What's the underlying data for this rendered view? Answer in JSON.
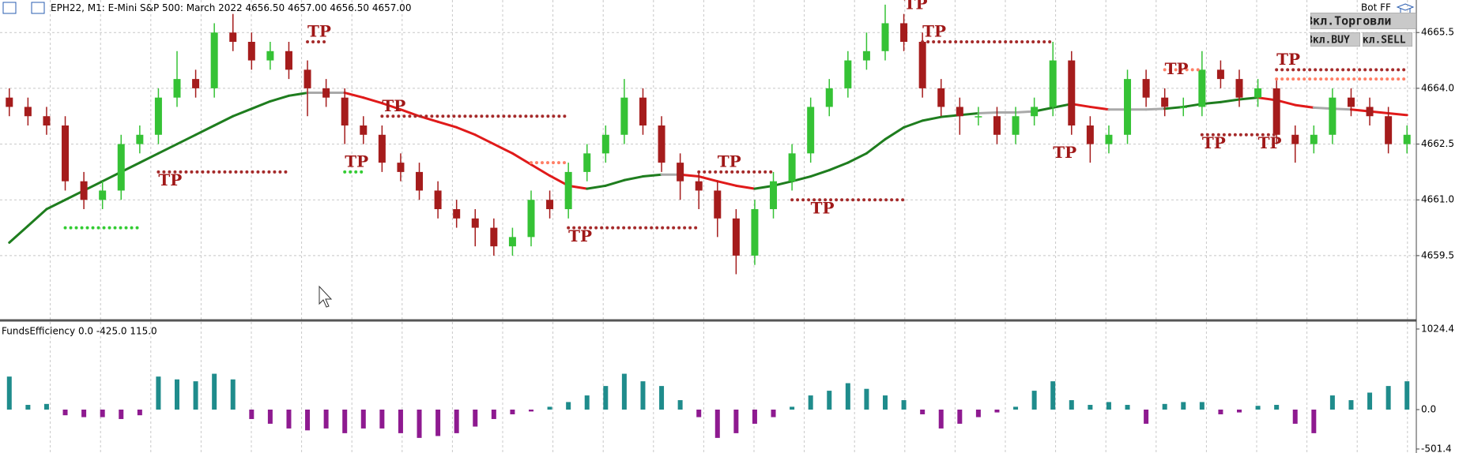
{
  "header": {
    "symbol": "EPH22, M1:",
    "description": "E-Mini S&P 500: March 2022",
    "ohlc": "4656.50 4657.00 4656.50 4657.00",
    "bot": "Bot FF",
    "buttons": [
      "Вкл.Торговли",
      "Вкл.BUY",
      "Вкл.SELL"
    ]
  },
  "chart_data": [
    {
      "type": "candlestick",
      "open": [
        4663.75,
        4663.5,
        4663.25,
        4663.0,
        4661.5,
        4661.0,
        4661.25,
        4662.5,
        4662.75,
        4663.75,
        4664.25,
        4664.0,
        4665.5,
        4665.25,
        4664.75,
        4665.0,
        4664.5,
        4664.0,
        4663.75,
        4663.0,
        4662.75,
        4662.0,
        4661.75,
        4661.25,
        4660.75,
        4660.5,
        4660.25,
        4659.75,
        4660.0,
        4661.0,
        4660.75,
        4661.75,
        4662.25,
        4662.75,
        4663.75,
        4663.0,
        4662.0,
        4661.5,
        4661.25,
        4660.5,
        4659.5,
        4660.75,
        4661.5,
        4662.25,
        4663.5,
        4664.0,
        4664.75,
        4665.0,
        4665.75,
        4665.25,
        4664.0,
        4663.5,
        4663.25,
        4663.25,
        4662.75,
        4663.25,
        4663.5,
        4664.75,
        4663.0,
        4662.5,
        4662.75,
        4664.25,
        4663.75,
        4663.5,
        4663.5,
        4664.5,
        4664.25,
        4663.75,
        4664.0,
        4662.75,
        4662.5,
        4662.75,
        4663.75,
        4663.5,
        4663.25,
        4662.5
      ],
      "high": [
        4664.0,
        4663.75,
        4663.5,
        4663.25,
        4661.75,
        4661.5,
        4662.75,
        4663.0,
        4664.0,
        4665.0,
        4664.5,
        4665.75,
        4666.0,
        4665.5,
        4665.25,
        4665.25,
        4664.75,
        4664.25,
        4664.0,
        4663.25,
        4663.0,
        4662.25,
        4662.0,
        4661.5,
        4661.0,
        4660.75,
        4660.5,
        4660.25,
        4661.25,
        4661.25,
        4662.0,
        4662.5,
        4663.0,
        4664.25,
        4664.0,
        4663.25,
        4662.25,
        4661.75,
        4661.5,
        4660.75,
        4661.0,
        4661.75,
        4662.5,
        4663.75,
        4664.25,
        4665.0,
        4665.5,
        4666.25,
        4666.0,
        4665.5,
        4664.25,
        4663.75,
        4663.5,
        4663.5,
        4663.5,
        4663.75,
        4665.25,
        4665.0,
        4663.25,
        4663.0,
        4664.5,
        4664.5,
        4664.0,
        4663.75,
        4665.0,
        4664.75,
        4664.5,
        4664.25,
        4664.25,
        4663.0,
        4663.0,
        4664.0,
        4664.0,
        4663.75,
        4663.5,
        4663.0
      ],
      "low": [
        4663.25,
        4663.0,
        4662.75,
        4661.25,
        4660.75,
        4660.75,
        4661.0,
        4662.25,
        4662.5,
        4663.5,
        4663.75,
        4663.75,
        4665.0,
        4664.5,
        4664.5,
        4664.25,
        4663.25,
        4663.5,
        4662.5,
        4662.5,
        4661.75,
        4661.5,
        4661.0,
        4660.5,
        4660.25,
        4659.75,
        4659.5,
        4659.5,
        4659.75,
        4660.5,
        4660.5,
        4661.5,
        4662.0,
        4662.5,
        4662.75,
        4661.75,
        4661.0,
        4660.75,
        4660.0,
        4659.0,
        4659.25,
        4660.5,
        4661.25,
        4662.0,
        4663.25,
        4663.75,
        4664.5,
        4664.75,
        4665.0,
        4663.75,
        4663.25,
        4662.75,
        4663.0,
        4662.5,
        4662.5,
        4663.0,
        4663.25,
        4662.75,
        4662.0,
        4662.25,
        4662.5,
        4663.5,
        4663.25,
        4663.25,
        4663.25,
        4664.0,
        4663.5,
        4663.5,
        4662.5,
        4662.0,
        4662.25,
        4662.5,
        4663.25,
        4663.0,
        4662.25,
        4662.25
      ],
      "close": [
        4663.5,
        4663.25,
        4663.0,
        4661.5,
        4661.0,
        4661.25,
        4662.5,
        4662.75,
        4663.75,
        4664.25,
        4664.0,
        4665.5,
        4665.25,
        4664.75,
        4665.0,
        4664.5,
        4664.0,
        4663.75,
        4663.0,
        4662.75,
        4662.0,
        4661.75,
        4661.25,
        4660.75,
        4660.5,
        4660.25,
        4659.75,
        4660.0,
        4661.0,
        4660.75,
        4661.75,
        4662.25,
        4662.75,
        4663.75,
        4663.0,
        4662.0,
        4661.5,
        4661.25,
        4660.5,
        4659.5,
        4660.75,
        4661.5,
        4662.25,
        4663.5,
        4664.0,
        4664.75,
        4665.0,
        4665.75,
        4665.25,
        4664.0,
        4663.5,
        4663.25,
        4663.25,
        4662.75,
        4663.25,
        4663.5,
        4664.75,
        4663.0,
        4662.5,
        4662.75,
        4664.25,
        4663.75,
        4663.5,
        4663.5,
        4664.5,
        4664.25,
        4663.75,
        4664.0,
        4662.75,
        4662.5,
        4662.75,
        4663.75,
        4663.5,
        4663.25,
        4662.5,
        4662.75
      ],
      "up_color": "#35c235",
      "down_color": "#a51c1c",
      "ma": {
        "values": [
          4659.85,
          4660.3,
          4660.75,
          4661.0,
          4661.25,
          4661.5,
          4661.75,
          4662.0,
          4662.25,
          4662.5,
          4662.75,
          4663.0,
          4663.25,
          4663.45,
          4663.65,
          4663.8,
          4663.88,
          4663.88,
          4663.88,
          4663.75,
          4663.6,
          4663.43,
          4663.25,
          4663.1,
          4662.95,
          4662.75,
          4662.5,
          4662.25,
          4661.95,
          4661.65,
          4661.38,
          4661.3,
          4661.38,
          4661.53,
          4661.63,
          4661.68,
          4661.68,
          4661.63,
          4661.5,
          4661.38,
          4661.3,
          4661.38,
          4661.5,
          4661.63,
          4661.8,
          4662.0,
          4662.25,
          4662.63,
          4662.95,
          4663.13,
          4663.23,
          4663.28,
          4663.33,
          4663.35,
          4663.35,
          4663.38,
          4663.48,
          4663.58,
          4663.5,
          4663.43,
          4663.43,
          4663.43,
          4663.45,
          4663.5,
          4663.58,
          4663.63,
          4663.7,
          4663.75,
          4663.68,
          4663.55,
          4663.48,
          4663.45,
          4663.43,
          4663.38,
          4663.33,
          4663.28
        ],
        "colors": {
          "up": "#1e7d1e",
          "down": "#e01a1a",
          "flat": "#a9a9a9"
        }
      },
      "levels": [
        {
          "start": 16,
          "end": 17,
          "price": 4665.25,
          "color": "#a52a2a"
        },
        {
          "start": 8,
          "end": 15,
          "price": 4661.75,
          "color": "#a52a2a"
        },
        {
          "start": 20,
          "end": 30,
          "price": 4663.25,
          "color": "#a52a2a"
        },
        {
          "start": 30,
          "end": 37,
          "price": 4660.25,
          "color": "#a52a2a"
        },
        {
          "start": 37,
          "end": 41,
          "price": 4661.75,
          "color": "#a52a2a"
        },
        {
          "start": 42,
          "end": 48,
          "price": 4661.0,
          "color": "#a52a2a"
        },
        {
          "start": 49,
          "end": 56,
          "price": 4665.25,
          "color": "#a52a2a"
        },
        {
          "start": 64,
          "end": 68,
          "price": 4662.75,
          "color": "#a52a2a"
        },
        {
          "start": 68,
          "end": 75,
          "price": 4664.5,
          "color": "#a52a2a"
        },
        {
          "start": 3,
          "end": 7,
          "price": 4660.25,
          "color": "#33cc33"
        },
        {
          "start": 18,
          "end": 19,
          "price": 4661.75,
          "color": "#33cc33"
        },
        {
          "start": 28,
          "end": 30,
          "price": 4662.0,
          "color": "#ff7f66"
        },
        {
          "start": 68,
          "end": 75,
          "price": 4664.25,
          "color": "#ff7f66"
        },
        {
          "start": 62,
          "end": 64,
          "price": 4664.5,
          "color": "#ff7f66"
        }
      ],
      "annotations": [
        {
          "text": "TP",
          "x": 16,
          "y": 4665.5
        },
        {
          "text": "TP",
          "x": 8,
          "y": 4661.5
        },
        {
          "text": "TP",
          "x": 18,
          "y": 4662.0
        },
        {
          "text": "TP",
          "x": 20,
          "y": 4663.5
        },
        {
          "text": "TP",
          "x": 30,
          "y": 4660.0
        },
        {
          "text": "TP",
          "x": 38,
          "y": 4662.0
        },
        {
          "text": "TP",
          "x": 43,
          "y": 4660.75
        },
        {
          "text": "TP",
          "x": 48,
          "y": 4666.25
        },
        {
          "text": "TP",
          "x": 49,
          "y": 4665.5
        },
        {
          "text": "TP",
          "x": 56,
          "y": 4662.25
        },
        {
          "text": "TP",
          "x": 62,
          "y": 4664.5
        },
        {
          "text": "TP",
          "x": 64,
          "y": 4662.5
        },
        {
          "text": "TP",
          "x": 67,
          "y": 4662.5
        },
        {
          "text": "TP",
          "x": 68,
          "y": 4664.75
        }
      ],
      "ylim": [
        4657.8,
        4666.375
      ],
      "yticks": [
        {
          "value": 4659.5,
          "label": "4659.5"
        },
        {
          "value": 4661,
          "label": "4661.0"
        },
        {
          "value": 4662.5,
          "label": "4662.5"
        },
        {
          "value": 4664,
          "label": "4664.0"
        },
        {
          "value": 4665.5,
          "label": "4665.5"
        }
      ],
      "grid": true
    },
    {
      "type": "bar",
      "title": "FundsEfficiency 0.0 -425.0 115.0",
      "values": [
        420,
        60,
        72,
        -72,
        -96,
        -96,
        -120,
        -72,
        420,
        384,
        360,
        456,
        384,
        -120,
        -180,
        -240,
        -264,
        -240,
        -300,
        -240,
        -240,
        -300,
        -360,
        -336,
        -300,
        -216,
        -120,
        -60,
        -24,
        36,
        96,
        180,
        300,
        456,
        360,
        300,
        120,
        -96,
        -360,
        -300,
        -180,
        -96,
        36,
        180,
        240,
        336,
        264,
        180,
        120,
        -60,
        -240,
        -180,
        -96,
        -36,
        36,
        240,
        360,
        120,
        60,
        96,
        60,
        -180,
        72,
        96,
        96,
        -60,
        -36,
        48,
        60,
        -180,
        -300,
        180,
        120,
        216,
        300,
        360
      ],
      "positive_color": "#1f8c8c",
      "negative_color": "#8e1a90",
      "ylim": [
        -552,
        1094
      ],
      "yticks": [
        -501.4,
        {
          "value": 0,
          "label": "0.0"
        },
        1024.4
      ],
      "grid": true
    }
  ]
}
